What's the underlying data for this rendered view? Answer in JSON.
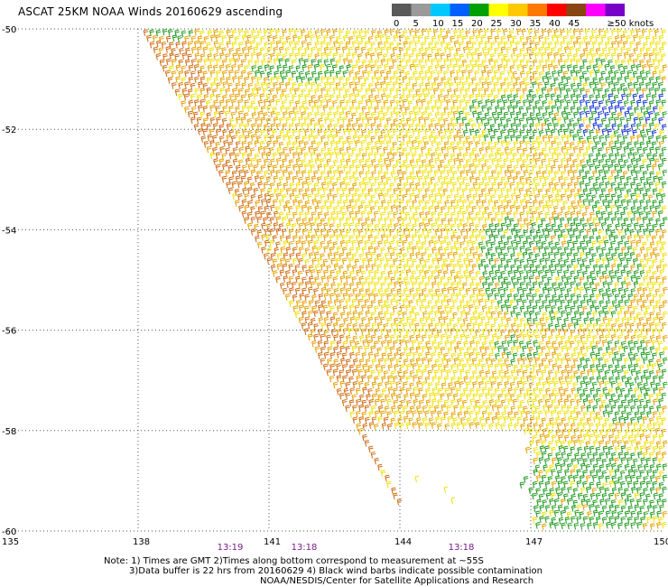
{
  "title": "ASCAT 25KM NOAA Winds 20160629 ascending",
  "legend": {
    "unit": "knots",
    "bins": [
      {
        "label": "0",
        "color": "#5a5a5a"
      },
      {
        "label": "5",
        "color": "#9a9a9a"
      },
      {
        "label": "10",
        "color": "#00c8ff"
      },
      {
        "label": "15",
        "color": "#0060ff"
      },
      {
        "label": "20",
        "color": "#00a000"
      },
      {
        "label": "25",
        "color": "#ffff00"
      },
      {
        "label": "30",
        "color": "#ffc800"
      },
      {
        "label": "35",
        "color": "#ff7800"
      },
      {
        "label": "40",
        "color": "#ff0000"
      },
      {
        "label": "45",
        "color": "#8b4513"
      },
      {
        "label": "",
        "color": "#ff00ff"
      },
      {
        "label": "≥50",
        "color": "#7800c8"
      }
    ],
    "last_label": "≥50 knots"
  },
  "map": {
    "lon_range": [
      135,
      150
    ],
    "lat_range": [
      -60,
      -50
    ],
    "lon_labels": [
      "135",
      "138",
      "141",
      "144",
      "147",
      "150"
    ],
    "lat_labels": [
      "-50",
      "-52",
      "-54",
      "-56",
      "-58",
      "-60"
    ],
    "grid": "dotted",
    "swath_edge": "diagonal, upper-left to lower-right"
  },
  "times": [
    "13:19",
    "13:18",
    "13:18"
  ],
  "notes": [
    "Note: 1) Times are GMT 2)Times along bottom correspond to measurement at ~55S",
    "3)Data buffer is 22 hrs from 20160629 4) Black wind barbs indicate possible contamination",
    "NOAA/NESDIS/Center for Satellite Applications and Research"
  ],
  "colors": {
    "time_label": "#7a1a8a",
    "barb_green": "#1e9a1e",
    "barb_yellow": "#f0e000",
    "barb_orange": "#e6a000",
    "barb_brown": "#d06a10",
    "barb_blue": "#1030d0"
  }
}
